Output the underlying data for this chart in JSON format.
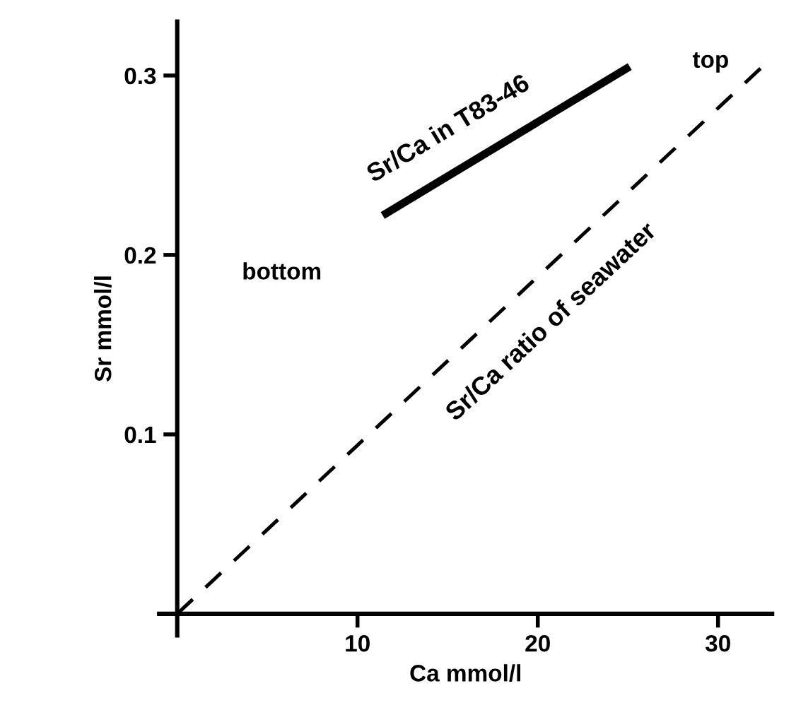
{
  "chart_data": {
    "type": "line",
    "xlabel": "Ca mmol/l",
    "ylabel": "Sr mmol/l",
    "xlim": [
      -1,
      33
    ],
    "ylim": [
      -0.012,
      0.33
    ],
    "xticks": [
      10,
      20,
      30
    ],
    "yticks": [
      0.1,
      0.2,
      0.3
    ],
    "grid": false,
    "legend": false,
    "marker": "none",
    "series": [
      {
        "name": "Sr/Ca in T83-46",
        "color": "#000000",
        "line_style": "solid",
        "x": [
          11.4,
          25.1
        ],
        "values": [
          0.222,
          0.305
        ]
      },
      {
        "name": "Sr/Ca ratio of seawater",
        "color": "#000000",
        "line_style": "dashed",
        "x": [
          0,
          33
        ],
        "values": [
          0,
          0.31
        ]
      }
    ],
    "annotations": [
      "bottom",
      "top"
    ]
  }
}
